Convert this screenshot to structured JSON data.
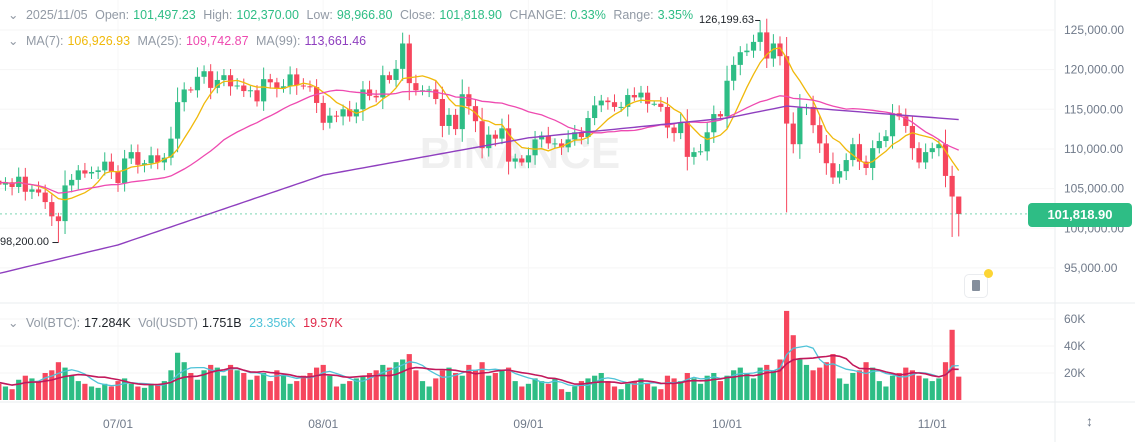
{
  "header": {
    "date": "2025/11/05",
    "open_label": "Open:",
    "open": "101,497.23",
    "high_label": "High:",
    "high": "102,370.00",
    "low_label": "Low:",
    "low": "98,966.80",
    "close_label": "Close:",
    "close": "101,818.90",
    "change_label": "CHANGE:",
    "change": "0.33%",
    "range_label": "Range:",
    "range": "3.35%"
  },
  "ma_legend": {
    "ma7_label": "MA(7):",
    "ma7": "106,926.93",
    "ma25_label": "MA(25):",
    "ma25": "109,742.87",
    "ma99_label": "MA(99):",
    "ma99": "113,661.46"
  },
  "vol_legend": {
    "btc_label": "Vol(BTC):",
    "btc": "17.284K",
    "usdt_label": "Vol(USDT)",
    "usdt": "1.751B",
    "ma_a": "23.356K",
    "ma_b": "19.57K"
  },
  "current_price": "101,818.90",
  "max_label": "126,199.63",
  "min_label": "98,200.00",
  "watermark": "BINANCE",
  "colors": {
    "up": "#2ebd85",
    "down": "#f6465d",
    "ma7": "#f0b90b",
    "ma25": "#ee4ab0",
    "ma99": "#8f3fbf",
    "vol_ma_a": "#4fc3d8",
    "vol_ma_b": "#c2185b"
  },
  "chart_data": {
    "type": "candlestick",
    "price_axis": {
      "ticks": [
        "125,000.00",
        "120,000.00",
        "115,000.00",
        "110,000.00",
        "105,000.00",
        "100,000.00",
        "95,000.00"
      ],
      "ylim": [
        92000,
        128000
      ]
    },
    "volume_axis": {
      "ticks": [
        "60K",
        "40K",
        "20K"
      ]
    },
    "x_ticks": [
      "07/01",
      "08/01",
      "09/01",
      "10/01",
      "11/01"
    ],
    "closes_k": {
      "06": [
        106,
        105.5,
        105.8,
        105.2,
        106.5,
        104.6,
        104.9,
        104.5,
        103.3,
        101.5,
        100.9,
        105.4,
        106.1,
        107.3,
        106.9,
        107.1,
        107.3,
        108.4,
        107.1
      ],
      "07": [
        105.7,
        108.8,
        109.6,
        108.0,
        108.2,
        109.2,
        108.3,
        108.9,
        111.3,
        115.9,
        117.5,
        117.4,
        119.1,
        119.8,
        117.7,
        118.7,
        119.3,
        117.9,
        118.0,
        117.3,
        117.4,
        116.0,
        118.8,
        118.4,
        117.6,
        117.9,
        119.4,
        118.0,
        117.9,
        117.8,
        115.8
      ],
      "08": [
        113.3,
        114.2,
        114.1,
        115.0,
        114.1,
        115.0,
        117.5,
        116.7,
        116.5,
        119.3,
        118.7,
        120.1,
        123.3,
        118.3,
        117.4,
        117.4,
        117.5,
        116.3,
        112.9,
        114.3,
        112.5,
        116.9,
        115.4,
        113.5,
        110.1,
        111.8,
        111.3,
        112.6,
        108.4,
        108.8,
        108.3
      ],
      "09": [
        109.2,
        111.2,
        111.7,
        110.7,
        110.7,
        110.2,
        111.2,
        112.1,
        111.5,
        113.9,
        115.5,
        116.1,
        115.9,
        115.3,
        115.3,
        116.8,
        116.5,
        117.1,
        115.7,
        115.7,
        115.3,
        112.7,
        112.0,
        113.3,
        109.0,
        109.6,
        109.7,
        112.1,
        114.4,
        114.1
      ],
      "10": [
        118.6,
        120.6,
        122.2,
        122.4,
        123.5,
        124.7,
        121.4,
        123.3,
        121.7,
        113.2,
        110.6,
        115.2,
        115.3,
        113.0,
        110.7,
        108.2,
        106.4,
        107.2,
        108.6,
        110.6,
        108.4,
        107.6,
        110.1,
        111.0,
        111.6,
        114.5,
        114.1,
        112.9,
        110.1,
        108.3,
        109.6
      ],
      "11": [
        110.1,
        110.6,
        106.6,
        104.0,
        101.8
      ]
    },
    "wick_extremes_k": [
      {
        "date": "06/22",
        "low": 98.2
      },
      {
        "date": "08/14",
        "high": 124.4
      },
      {
        "date": "10/06",
        "high": 126.2
      },
      {
        "date": "10/10",
        "low": 102.0
      },
      {
        "date": "11/04",
        "low": 98.9
      },
      {
        "date": "11/05",
        "low": 98.97,
        "high": 102.37
      }
    ],
    "ma99_k": {
      "06/12": 94.1,
      "07/01": 97.9,
      "08/01": 106.7,
      "09/01": 111.4,
      "10/01": 113.9,
      "10/10": 115.4,
      "11/05": 113.7
    },
    "volume_k": {
      "06": [
        14,
        12,
        10,
        8,
        15,
        18,
        16,
        13,
        20,
        22,
        28,
        24,
        18,
        14,
        12,
        10,
        9,
        12,
        10
      ],
      "07": [
        14,
        16,
        12,
        10,
        9,
        12,
        11,
        14,
        22,
        35,
        28,
        20,
        15,
        22,
        26,
        24,
        18,
        26,
        22,
        20,
        15,
        18,
        20,
        14,
        22,
        18,
        12,
        14,
        18,
        20,
        24
      ],
      "08": [
        26,
        18,
        10,
        12,
        14,
        16,
        18,
        20,
        22,
        26,
        24,
        28,
        30,
        34,
        22,
        14,
        10,
        16,
        22,
        24,
        20,
        18,
        26,
        22,
        28,
        18,
        20,
        22,
        24,
        14,
        10
      ],
      "09": [
        12,
        16,
        14,
        12,
        16,
        8,
        6,
        10,
        14,
        16,
        18,
        20,
        14,
        10,
        8,
        12,
        14,
        16,
        12,
        10,
        8,
        18,
        16,
        14,
        20,
        16,
        12,
        18,
        20,
        14
      ],
      "10": [
        18,
        22,
        24,
        20,
        16,
        24,
        26,
        22,
        30,
        66,
        48,
        30,
        26,
        22,
        24,
        28,
        34,
        16,
        12,
        20,
        22,
        28,
        24,
        14,
        10,
        18,
        20,
        24,
        22,
        18,
        16
      ],
      "11": [
        14,
        16,
        28,
        52,
        17.3
      ]
    }
  }
}
